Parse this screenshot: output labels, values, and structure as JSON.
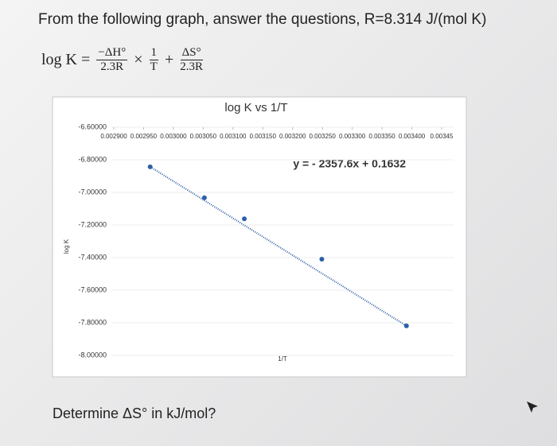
{
  "question": "From the following graph, answer the questions, R=8.314 J/(mol K)",
  "equation": {
    "lhs": "log K =",
    "term1_num": "−ΔH°",
    "term1_den": "2.3R",
    "times": "×",
    "term2_num": "1",
    "term2_den": "T",
    "plus": "+",
    "term3_num": "ΔS°",
    "term3_den": "2.3R"
  },
  "chart_data": {
    "type": "scatter",
    "title": "log K vs 1/T",
    "x_label": "1/T",
    "y_label": "log K",
    "annotation": "y = - 2357.6x + 0.1632",
    "x": [
      0.002961,
      0.003052,
      0.003119,
      0.003249,
      0.003391
    ],
    "series": [
      {
        "name": "log K",
        "color": "#2e5fa8",
        "values": [
          -6.843,
          -7.033,
          -7.162,
          -7.41,
          -7.819
        ]
      }
    ],
    "xlim": [
      0.0029,
      0.00345
    ],
    "ylim": [
      -8.0,
      -6.6
    ],
    "xticks": [
      {
        "value": 0.0029,
        "label": "0.002900"
      },
      {
        "value": 0.00295,
        "label": "0.002950"
      },
      {
        "value": 0.003,
        "label": "0.003000"
      },
      {
        "value": 0.00305,
        "label": "0.003050"
      },
      {
        "value": 0.0031,
        "label": "0.003100"
      },
      {
        "value": 0.00315,
        "label": "0.003150"
      },
      {
        "value": 0.0032,
        "label": "0.003200"
      },
      {
        "value": 0.00325,
        "label": "0.003250"
      },
      {
        "value": 0.0033,
        "label": "0.003300"
      },
      {
        "value": 0.00335,
        "label": "0.003350"
      },
      {
        "value": 0.0034,
        "label": "0.003400"
      },
      {
        "value": 0.00345,
        "label": "0.00345"
      }
    ],
    "yticks": [
      {
        "value": -6.6,
        "label": "-6.60000"
      },
      {
        "value": -6.8,
        "label": "-6.80000"
      },
      {
        "value": -7.0,
        "label": "-7.00000"
      },
      {
        "value": -7.2,
        "label": "-7.20000"
      },
      {
        "value": -7.4,
        "label": "-7.40000"
      },
      {
        "value": -7.6,
        "label": "-7.60000"
      },
      {
        "value": -7.8,
        "label": "-7.80000"
      },
      {
        "value": -8.0,
        "label": "-8.00000"
      }
    ],
    "grid": true
  },
  "prompt": "Determine ΔS° in kJ/mol?"
}
